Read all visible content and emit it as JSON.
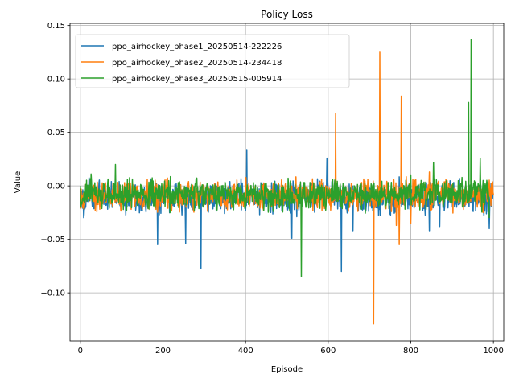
{
  "chart_data": {
    "type": "line",
    "title": "Policy Loss",
    "xlabel": "Episode",
    "ylabel": "Value",
    "xlim": [
      -25,
      1025
    ],
    "ylim": [
      -0.145,
      0.152
    ],
    "xticks": [
      0,
      200,
      400,
      600,
      800,
      1000
    ],
    "xtick_labels": [
      "0",
      "200",
      "400",
      "600",
      "800",
      "1000"
    ],
    "yticks": [
      -0.1,
      -0.05,
      0.0,
      0.05,
      0.1,
      0.15
    ],
    "ytick_labels": [
      "−0.10",
      "−0.05",
      "0.00",
      "0.05",
      "0.10",
      "0.15"
    ],
    "grid": true,
    "legend_position": "top-left",
    "series": [
      {
        "name": "ppo_airhockey_phase1_20250514-222226",
        "color": "#1f77b4",
        "x_start": 0,
        "x_end": 1000,
        "baseline": -0.011,
        "noise": 0.007,
        "spikes": [
          [
            10,
            -0.018
          ],
          [
            187,
            -0.055
          ],
          [
            255,
            -0.054
          ],
          [
            292,
            -0.077
          ],
          [
            403,
            0.034
          ],
          [
            512,
            -0.049
          ],
          [
            597,
            0.026
          ],
          [
            632,
            -0.08
          ],
          [
            660,
            -0.042
          ],
          [
            845,
            -0.042
          ],
          [
            870,
            -0.038
          ],
          [
            990,
            -0.04
          ]
        ]
      },
      {
        "name": "ppo_airhockey_phase2_20250514-234418",
        "color": "#ff7f0e",
        "x_start": 0,
        "x_end": 1000,
        "baseline": -0.009,
        "noise": 0.0065,
        "spikes": [
          [
            618,
            0.068
          ],
          [
            710,
            -0.129
          ],
          [
            725,
            0.125
          ],
          [
            765,
            -0.037
          ],
          [
            772,
            -0.055
          ],
          [
            777,
            0.084
          ],
          [
            800,
            -0.035
          ],
          [
            845,
            0.013
          ],
          [
            885,
            0.006
          ],
          [
            995,
            0.002
          ]
        ]
      },
      {
        "name": "ppo_airhockey_phase3_20250515-005914",
        "color": "#2ca02c",
        "x_start": 0,
        "x_end": 990,
        "baseline": -0.008,
        "noise": 0.0065,
        "spikes": [
          [
            85,
            0.02
          ],
          [
            535,
            -0.085
          ],
          [
            855,
            0.022
          ],
          [
            940,
            0.078
          ],
          [
            946,
            0.137
          ],
          [
            968,
            0.026
          ],
          [
            990,
            -0.03
          ]
        ]
      }
    ]
  }
}
